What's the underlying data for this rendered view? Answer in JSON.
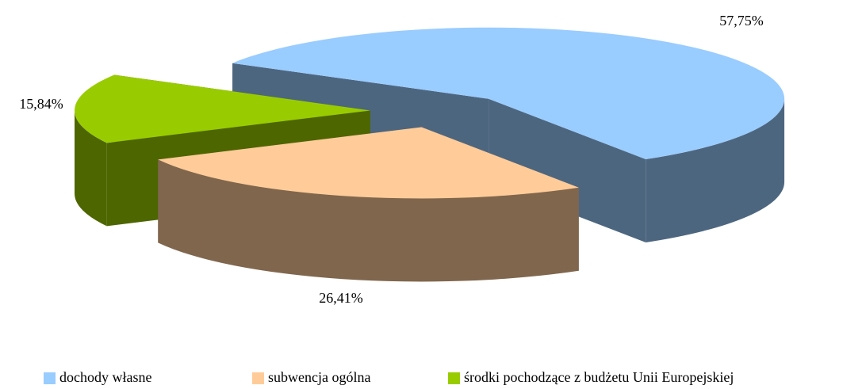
{
  "chart_data": {
    "type": "pie3d",
    "categories": [
      "dochody własne",
      "subwencja ogólna",
      "środki pochodzące z budżetu Unii Europejskiej"
    ],
    "values": [
      57.75,
      26.41,
      15.84
    ],
    "value_labels": [
      "57,75%",
      "26,41%",
      "15,84%"
    ],
    "colors": [
      "#99ccff",
      "#ffcc99",
      "#99cc00"
    ],
    "legend": "bottom"
  }
}
